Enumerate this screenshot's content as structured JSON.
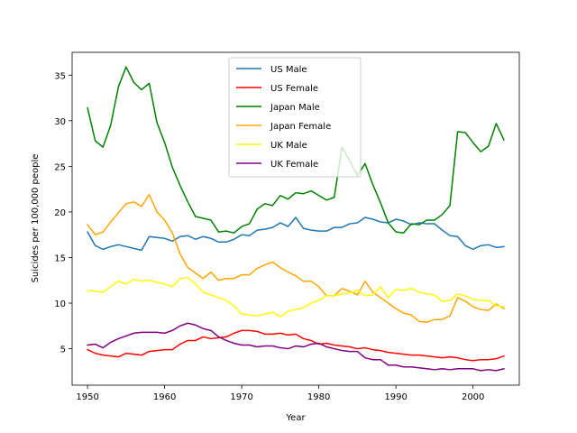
{
  "chart_data": {
    "type": "line",
    "title": "",
    "xlabel": "Year",
    "ylabel": "Suicides per 100,000 people",
    "xlim": [
      1948,
      2006
    ],
    "ylim": [
      1.0,
      37.5
    ],
    "xticks": [
      1950,
      1960,
      1970,
      1980,
      1990,
      2000
    ],
    "yticks": [
      5,
      10,
      15,
      20,
      25,
      30,
      35
    ],
    "grid": false,
    "legend_position": "top-center",
    "x": [
      1950,
      1951,
      1952,
      1953,
      1954,
      1955,
      1956,
      1957,
      1958,
      1959,
      1960,
      1961,
      1962,
      1963,
      1964,
      1965,
      1966,
      1967,
      1968,
      1969,
      1970,
      1971,
      1972,
      1973,
      1974,
      1975,
      1976,
      1977,
      1978,
      1979,
      1980,
      1981,
      1982,
      1983,
      1984,
      1985,
      1986,
      1987,
      1988,
      1989,
      1990,
      1991,
      1992,
      1993,
      1994,
      1995,
      1996,
      1997,
      1998,
      1999,
      2000,
      2001,
      2002,
      2003,
      2004
    ],
    "series": [
      {
        "name": "US Male",
        "color": "#1f77b4",
        "values": [
          17.8,
          16.3,
          15.9,
          16.2,
          16.4,
          16.2,
          16.0,
          15.8,
          17.3,
          17.2,
          17.1,
          16.8,
          17.3,
          17.4,
          17.0,
          17.3,
          17.1,
          16.7,
          16.7,
          17.0,
          17.5,
          17.4,
          18.0,
          18.1,
          18.3,
          18.8,
          18.4,
          19.4,
          18.2,
          18.0,
          17.9,
          17.9,
          18.3,
          18.3,
          18.7,
          18.8,
          19.4,
          19.2,
          18.9,
          18.8,
          19.2,
          19.0,
          18.6,
          18.8,
          18.7,
          18.7,
          18.0,
          17.4,
          17.3,
          16.3,
          15.9,
          16.3,
          16.4,
          16.1,
          16.2
        ]
      },
      {
        "name": "US Female",
        "color": "#ff0000",
        "values": [
          4.9,
          4.5,
          4.3,
          4.2,
          4.1,
          4.5,
          4.4,
          4.3,
          4.7,
          4.8,
          4.9,
          4.9,
          5.5,
          5.9,
          5.9,
          6.3,
          6.1,
          6.2,
          6.3,
          6.7,
          7.0,
          7.0,
          6.9,
          6.6,
          6.6,
          6.7,
          6.5,
          6.6,
          6.1,
          5.9,
          5.5,
          5.6,
          5.4,
          5.3,
          5.2,
          5.0,
          5.1,
          4.9,
          4.8,
          4.6,
          4.5,
          4.4,
          4.3,
          4.3,
          4.2,
          4.1,
          4.0,
          4.1,
          4.0,
          3.8,
          3.7,
          3.8,
          3.8,
          3.9,
          4.2
        ]
      },
      {
        "name": "Japan Male",
        "color": "#008000",
        "values": [
          31.4,
          27.8,
          27.1,
          29.5,
          33.7,
          35.9,
          34.2,
          33.4,
          34.1,
          29.8,
          27.6,
          24.9,
          22.9,
          21.1,
          19.5,
          19.3,
          19.1,
          17.8,
          17.9,
          17.7,
          18.4,
          18.7,
          20.3,
          20.9,
          20.7,
          21.8,
          21.4,
          22.1,
          22.0,
          22.3,
          21.8,
          21.3,
          21.6,
          27.1,
          25.6,
          24.0,
          25.3,
          23.0,
          21.0,
          18.8,
          17.8,
          17.7,
          18.7,
          18.6,
          19.1,
          19.1,
          19.7,
          20.7,
          28.8,
          28.7,
          27.6,
          26.6,
          27.2,
          29.7,
          27.9
        ]
      },
      {
        "name": "Japan Female",
        "color": "#ffa500",
        "values": [
          18.6,
          17.5,
          17.8,
          18.9,
          19.9,
          20.9,
          21.1,
          20.6,
          21.9,
          20.0,
          19.1,
          17.7,
          15.4,
          13.9,
          13.3,
          12.7,
          13.4,
          12.5,
          12.7,
          12.7,
          13.1,
          13.1,
          13.8,
          14.2,
          14.5,
          13.9,
          13.4,
          13.0,
          12.4,
          12.4,
          11.8,
          10.8,
          10.8,
          11.6,
          11.3,
          10.9,
          12.4,
          11.2,
          10.6,
          10.0,
          9.4,
          8.9,
          8.7,
          8.0,
          7.9,
          8.2,
          8.2,
          8.6,
          10.6,
          10.2,
          9.6,
          9.3,
          9.2,
          9.9,
          9.4
        ]
      },
      {
        "name": "UK Male",
        "color": "#ffff00",
        "values": [
          11.4,
          11.3,
          11.2,
          11.8,
          12.4,
          12.1,
          12.6,
          12.4,
          12.5,
          12.3,
          12.1,
          11.8,
          12.7,
          12.8,
          12.1,
          11.2,
          10.9,
          10.6,
          10.3,
          9.7,
          8.8,
          8.7,
          8.6,
          8.8,
          9.0,
          8.5,
          9.1,
          9.3,
          9.5,
          10.0,
          10.3,
          10.8,
          10.8,
          11.0,
          11.1,
          11.4,
          10.8,
          10.9,
          11.8,
          10.6,
          11.5,
          11.4,
          11.6,
          11.2,
          11.0,
          10.9,
          10.2,
          10.3,
          11.0,
          10.8,
          10.4,
          10.3,
          10.3,
          9.7,
          9.6
        ]
      },
      {
        "name": "UK Female",
        "color": "#800080",
        "values": [
          5.4,
          5.5,
          5.1,
          5.7,
          6.1,
          6.4,
          6.7,
          6.8,
          6.8,
          6.8,
          6.7,
          7.0,
          7.5,
          7.8,
          7.6,
          7.2,
          7.0,
          6.3,
          5.9,
          5.6,
          5.4,
          5.4,
          5.2,
          5.3,
          5.3,
          5.1,
          5.0,
          5.3,
          5.2,
          5.5,
          5.6,
          5.2,
          5.0,
          4.8,
          4.7,
          4.7,
          4.0,
          3.8,
          3.8,
          3.2,
          3.2,
          3.0,
          3.0,
          2.9,
          2.8,
          2.7,
          2.8,
          2.7,
          2.8,
          2.8,
          2.8,
          2.6,
          2.7,
          2.6,
          2.8
        ]
      }
    ]
  }
}
